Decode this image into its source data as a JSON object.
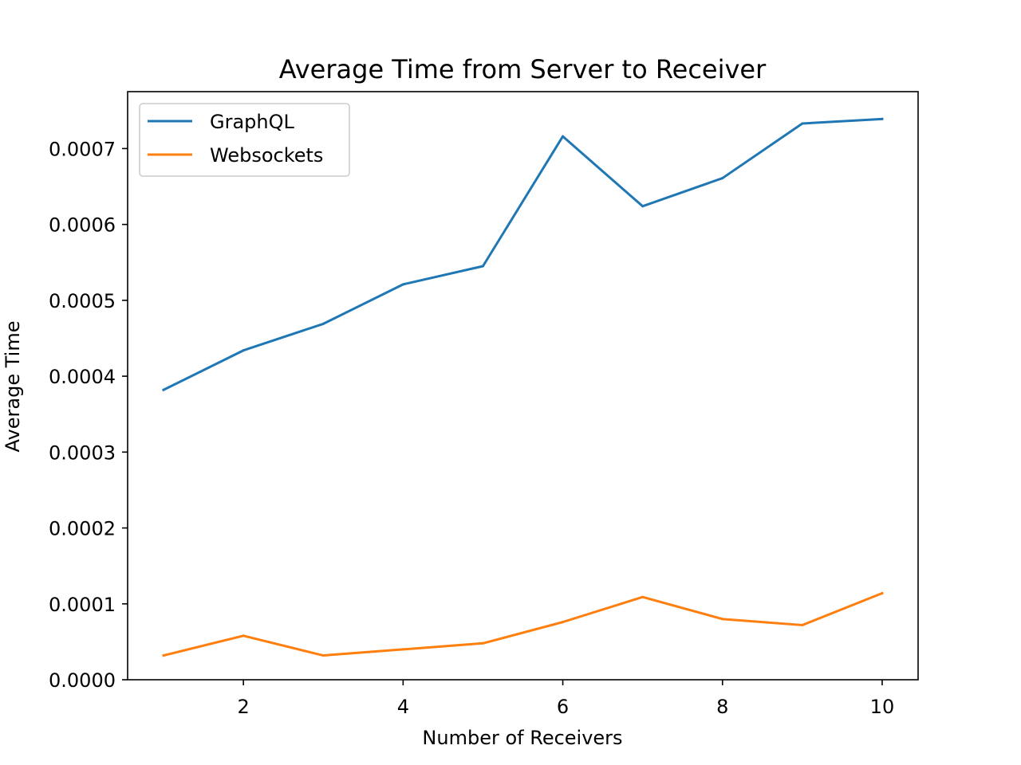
{
  "chart_data": {
    "type": "line",
    "title": "Average Time from Server to Receiver",
    "xlabel": "Number of Receivers",
    "ylabel": "Average Time",
    "x": [
      1,
      2,
      3,
      4,
      5,
      6,
      7,
      8,
      9,
      10
    ],
    "xlim": [
      0.55,
      10.45
    ],
    "ylim": [
      0,
      0.000775
    ],
    "xticks": [
      2,
      4,
      6,
      8,
      10
    ],
    "xtick_labels": [
      "2",
      "4",
      "6",
      "8",
      "10"
    ],
    "yticks": [
      0,
      0.0001,
      0.0002,
      0.0003,
      0.0004,
      0.0005,
      0.0006,
      0.0007
    ],
    "ytick_labels": [
      "0.0000",
      "0.0001",
      "0.0002",
      "0.0003",
      "0.0004",
      "0.0005",
      "0.0006",
      "0.0007"
    ],
    "grid": false,
    "legend": "top-left",
    "series": [
      {
        "name": "GraphQL",
        "color": "#1f77b4",
        "values": [
          0.000382,
          0.000434,
          0.000469,
          0.000521,
          0.000545,
          0.000716,
          0.000624,
          0.000661,
          0.000733,
          0.000739
        ]
      },
      {
        "name": "Websockets",
        "color": "#ff7f0e",
        "values": [
          3.2e-05,
          5.8e-05,
          3.2e-05,
          4e-05,
          4.8e-05,
          7.6e-05,
          0.000109,
          8e-05,
          7.2e-05,
          0.000114
        ]
      }
    ]
  }
}
